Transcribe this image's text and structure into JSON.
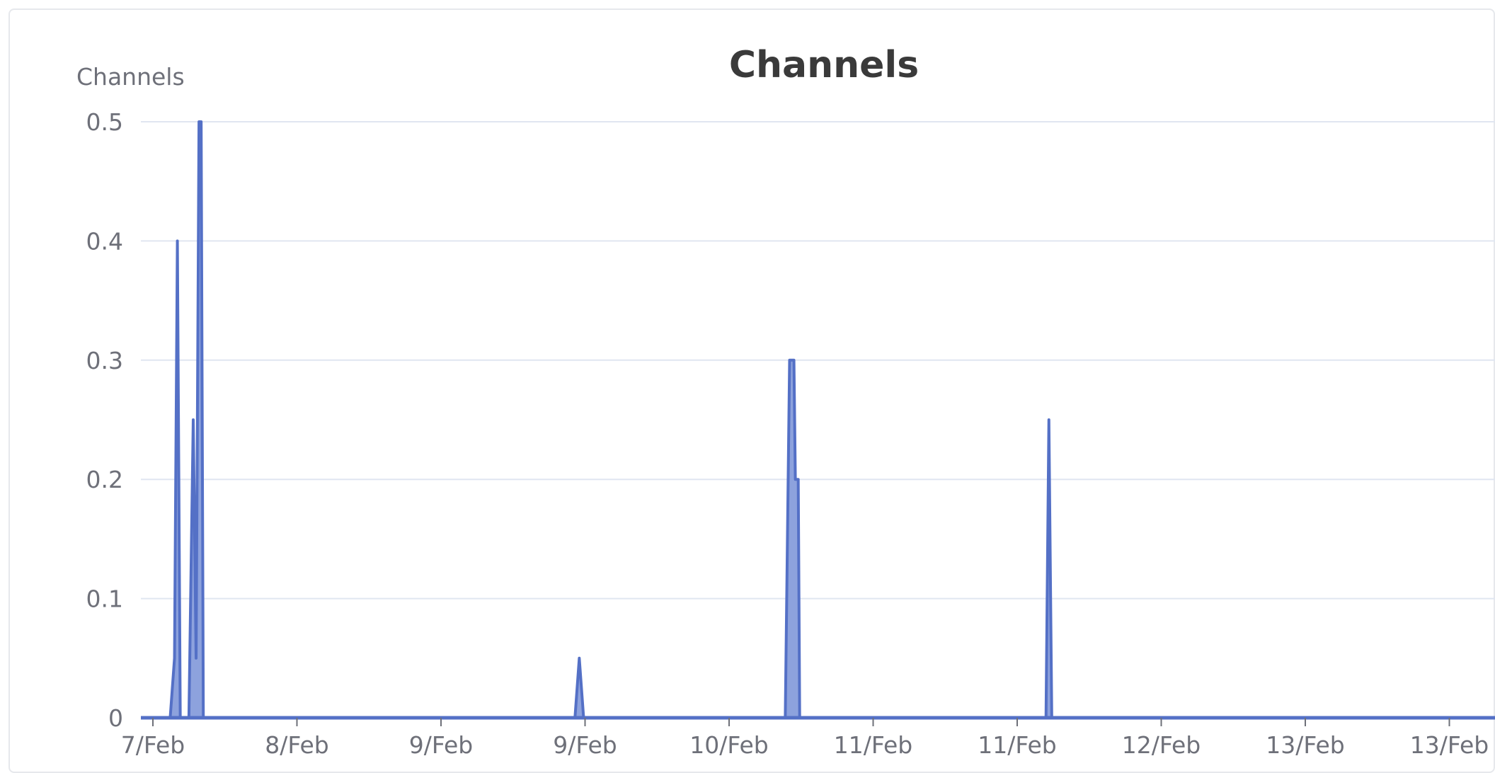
{
  "chart_data": {
    "type": "area",
    "title": "Channels",
    "ylabel": "Channels",
    "xlabel": "",
    "ylim": [
      0,
      0.5
    ],
    "yticks": [
      "0",
      "0.1",
      "0.2",
      "0.3",
      "0.4",
      "0.5"
    ],
    "xticks": [
      "7/Feb",
      "8/Feb",
      "9/Feb",
      "9/Feb",
      "10/Feb",
      "11/Feb",
      "11/Feb",
      "12/Feb",
      "13/Feb",
      "13/Feb"
    ],
    "x_range": [
      0,
      9.5
    ],
    "grid": true,
    "series": [
      {
        "x": [
          0,
          0.12,
          0.15,
          0.17,
          0.19,
          0.21,
          0.25,
          0.28,
          0.3,
          0.32,
          0.335,
          0.35,
          0.37,
          0.39,
          2.93,
          2.96,
          2.99,
          4.39,
          4.42,
          4.45,
          4.46,
          4.48,
          4.49,
          4.51,
          6.2,
          6.22,
          6.24,
          9.5
        ],
        "y": [
          0,
          0,
          0.05,
          0.4,
          0,
          0,
          0,
          0.25,
          0.05,
          0.5,
          0.5,
          0,
          0,
          0,
          0,
          0.05,
          0,
          0,
          0.3,
          0.3,
          0.2,
          0.2,
          0,
          0,
          0,
          0.25,
          0,
          0
        ],
        "color": "#5470c6",
        "fill": "#8da2dd"
      }
    ]
  }
}
